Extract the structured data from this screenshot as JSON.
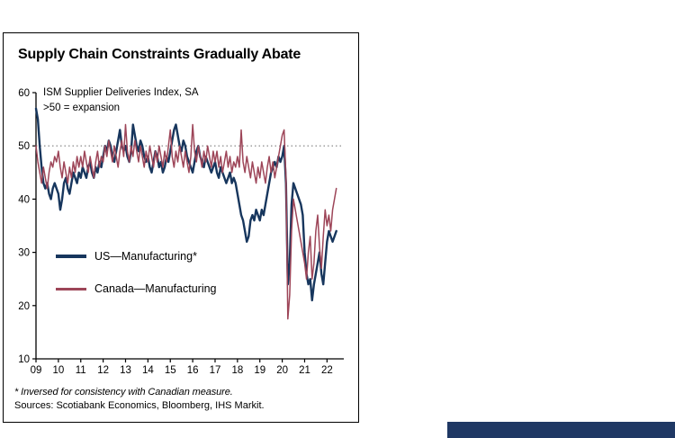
{
  "panel": {
    "title": "Supply Chain Constraints Gradually Abate",
    "subtitle_line1": "ISM Supplier Deliveries Index, SA",
    "subtitle_line2": ">50 = expansion",
    "footnote": "* Inversed for consistency with Canadian measure.",
    "sources": "Sources: Scotiabank Economics, Bloomberg, IHS Markit."
  },
  "colors": {
    "us_line": "#17365d",
    "canada_line": "#9d4558",
    "reference_line": "#7f7f7f",
    "footer_bar": "#1f3864"
  },
  "chart_data": {
    "type": "line",
    "title": "Supply Chain Constraints Gradually Abate",
    "xlabel": "",
    "ylabel": "",
    "ylim": [
      10,
      60
    ],
    "yticks": [
      10,
      20,
      30,
      40,
      50,
      60
    ],
    "xticks": [
      "09",
      "10",
      "11",
      "12",
      "13",
      "14",
      "15",
      "16",
      "17",
      "18",
      "19",
      "20",
      "21",
      "22"
    ],
    "x_tick_years": [
      2009,
      2010,
      2011,
      2012,
      2013,
      2014,
      2015,
      2016,
      2017,
      2018,
      2019,
      2020,
      2021,
      2022
    ],
    "x_range": [
      2009,
      2022.75
    ],
    "x_start": 2009,
    "x_step_months": 1,
    "grid": false,
    "legend_position": "inside-lower-left",
    "reference_line": {
      "y": 50,
      "style": "dotted"
    },
    "annotations": [
      "ISM Supplier Deliveries Index, SA",
      ">50 = expansion"
    ],
    "series": [
      {
        "name": "US—Manufacturing*",
        "color": "#17365d",
        "width": 2.4,
        "values": [
          57,
          55,
          50,
          46,
          43,
          42,
          43,
          41,
          40,
          42,
          43,
          42,
          41,
          38,
          40,
          43,
          44,
          42,
          41,
          43,
          45,
          44,
          43,
          45,
          44,
          46,
          45,
          44,
          46,
          47,
          45,
          44,
          46,
          45,
          47,
          46,
          48,
          50,
          49,
          51,
          50,
          48,
          47,
          49,
          51,
          53,
          50,
          49,
          50,
          48,
          47,
          49,
          54,
          52,
          50,
          49,
          51,
          50,
          48,
          47,
          48,
          46,
          45,
          47,
          49,
          48,
          46,
          47,
          45,
          46,
          48,
          47,
          49,
          51,
          53,
          54,
          52,
          50,
          49,
          51,
          50,
          48,
          47,
          46,
          45,
          47,
          49,
          50,
          48,
          47,
          46,
          48,
          47,
          46,
          45,
          46,
          47,
          45,
          44,
          46,
          45,
          44,
          43,
          44,
          45,
          43,
          44,
          43,
          41,
          39,
          37,
          36,
          34,
          32,
          33,
          36,
          37,
          36,
          38,
          37,
          36,
          38,
          37,
          39,
          41,
          43,
          45,
          46,
          47,
          46,
          48,
          47,
          48,
          50,
          43,
          24,
          28,
          39,
          43,
          42,
          41,
          40,
          39,
          37,
          30,
          26,
          24,
          25,
          21,
          24,
          26,
          28,
          30,
          26,
          24,
          28,
          32,
          34,
          33,
          32,
          33,
          34
        ]
      },
      {
        "name": "Canada—Manufacturing",
        "color": "#9d4558",
        "width": 1.5,
        "values": [
          50,
          47,
          45,
          43,
          46,
          44,
          42,
          45,
          47,
          46,
          48,
          47,
          49,
          46,
          44,
          47,
          45,
          43,
          46,
          44,
          47,
          45,
          48,
          46,
          48,
          46,
          49,
          47,
          45,
          48,
          46,
          44,
          47,
          49,
          46,
          48,
          47,
          50,
          48,
          51,
          49,
          47,
          50,
          48,
          46,
          49,
          51,
          48,
          54,
          49,
          47,
          50,
          48,
          51,
          49,
          47,
          50,
          48,
          46,
          49,
          47,
          50,
          48,
          46,
          49,
          47,
          50,
          48,
          46,
          49,
          47,
          50,
          53,
          48,
          46,
          49,
          47,
          50,
          48,
          46,
          49,
          47,
          45,
          48,
          54,
          49,
          47,
          50,
          48,
          46,
          49,
          47,
          50,
          48,
          46,
          49,
          47,
          49,
          46,
          48,
          45,
          47,
          49,
          46,
          48,
          45,
          47,
          46,
          48,
          46,
          53,
          47,
          45,
          48,
          46,
          44,
          47,
          45,
          43,
          46,
          44,
          47,
          45,
          43,
          46,
          48,
          45,
          47,
          44,
          46,
          48,
          50,
          52,
          53,
          44,
          17.5,
          22,
          34,
          40,
          38,
          36,
          34,
          32,
          30,
          28,
          25,
          30,
          33,
          25,
          28,
          34,
          37,
          31,
          27,
          33,
          38,
          35,
          37,
          34,
          38,
          40,
          42
        ]
      }
    ]
  }
}
